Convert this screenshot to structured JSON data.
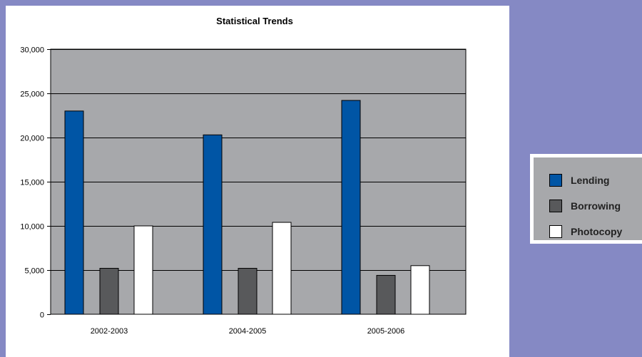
{
  "page_background": "#8589c4",
  "chart_data": {
    "type": "bar",
    "title": "Statistical Trends",
    "categories": [
      "2002-2003",
      "2004-2005",
      "2005-2006"
    ],
    "series": [
      {
        "name": "Lending",
        "color": "#0055a5",
        "values": [
          23000,
          20300,
          24200
        ]
      },
      {
        "name": "Borrowing",
        "color": "#58595b",
        "values": [
          5200,
          5200,
          4400
        ]
      },
      {
        "name": "Photocopy",
        "color": "#ffffff",
        "values": [
          10000,
          10400,
          5500
        ]
      }
    ],
    "xlabel": "",
    "ylabel": "",
    "ylim": [
      0,
      30000
    ],
    "yticks": [
      0,
      5000,
      10000,
      15000,
      20000,
      25000,
      30000
    ],
    "ytick_labels": [
      "0",
      "5,000",
      "10,000",
      "15,000",
      "20,000",
      "25,000",
      "30,000"
    ],
    "plot_background": "#a7a8ab",
    "grid": true,
    "legend_position": "right"
  }
}
